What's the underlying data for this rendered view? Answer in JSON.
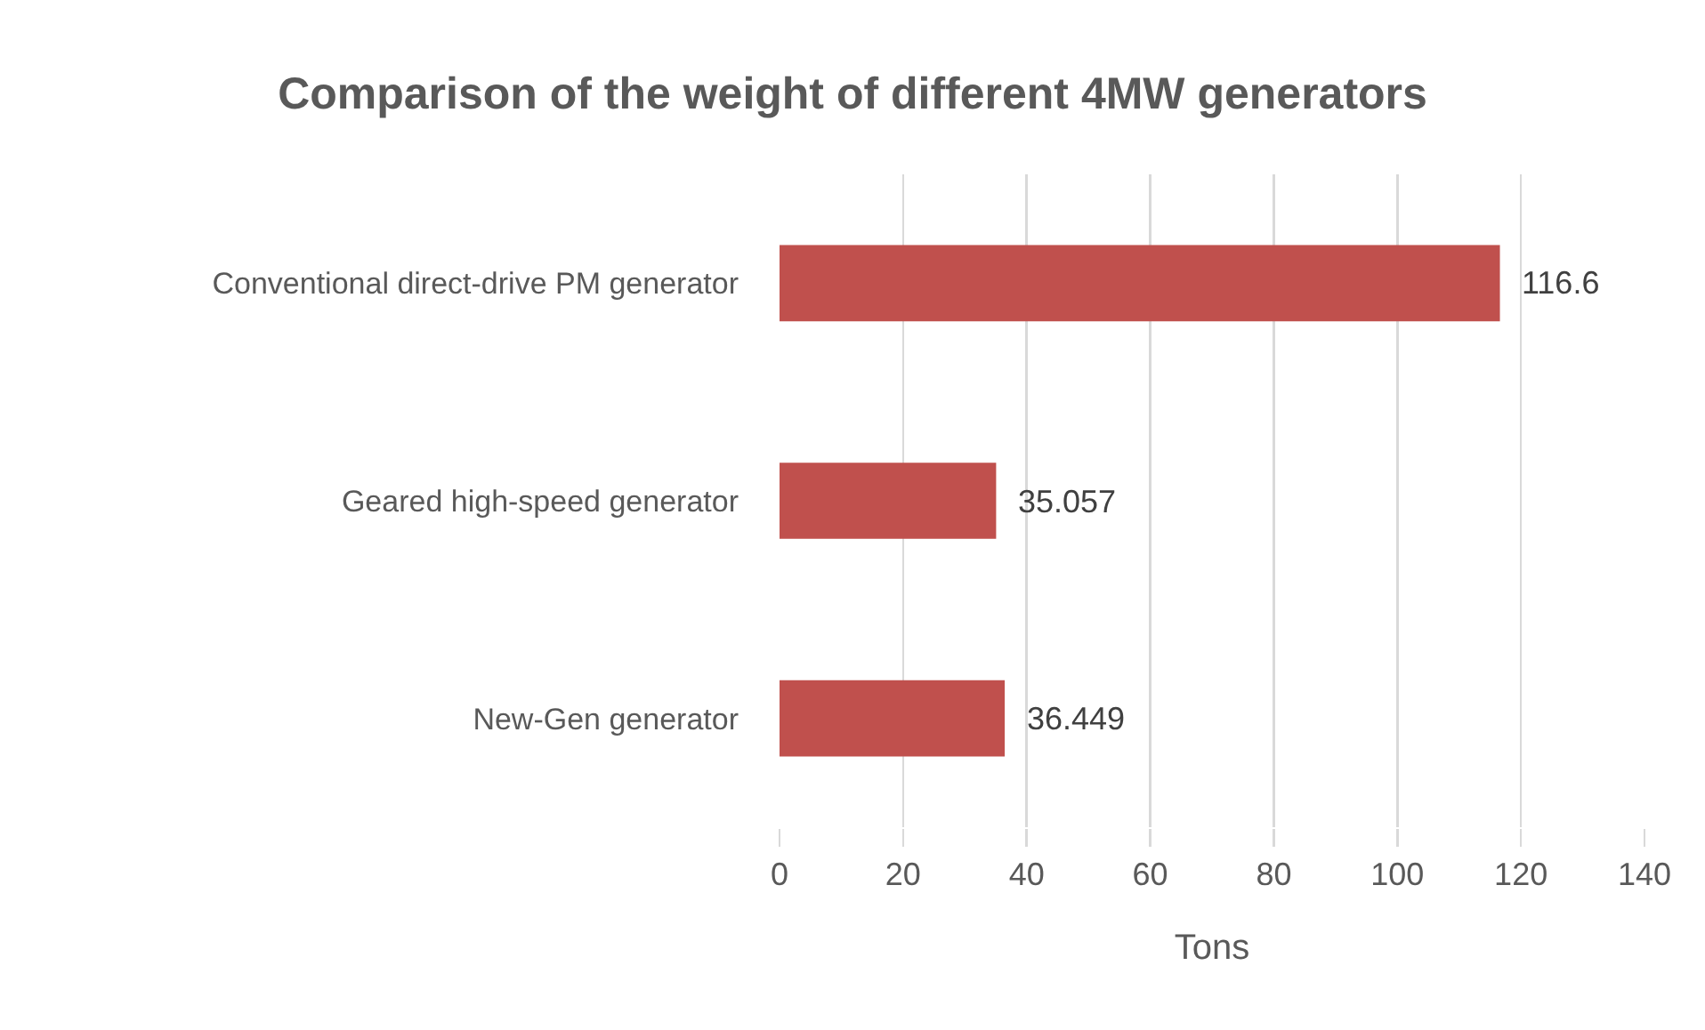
{
  "chart_data": {
    "type": "bar",
    "orientation": "horizontal",
    "title": "Comparison of the weight of different 4MW generators",
    "xlabel": "Tons",
    "categories": [
      "Conventional direct-drive PM generator",
      "Geared high-speed generator",
      "New-Gen generator"
    ],
    "values": [
      116.6,
      35.057,
      36.449
    ],
    "color": "#c0504d",
    "data_labels": true,
    "xlim": [
      0,
      140
    ],
    "xticks": [
      0,
      20,
      40,
      60,
      80,
      100,
      120,
      140
    ],
    "grid": "x"
  }
}
